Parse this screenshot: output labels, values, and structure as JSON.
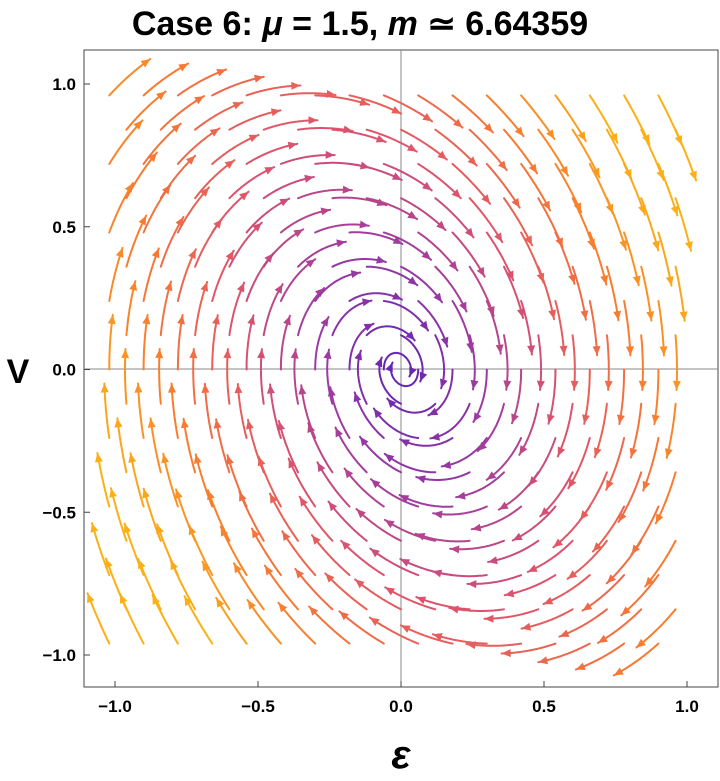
{
  "chart_data": {
    "type": "streamplot",
    "title": {
      "prefix": "Case 6: ",
      "mu_symbol": "μ",
      "mu_text": " = 1.5, ",
      "m_symbol": "m",
      "m_text": " ≃ 6.64359"
    },
    "xlabel": "ε",
    "ylabel": "V",
    "xlim": [
      -1.0,
      1.0
    ],
    "ylim": [
      -1.0,
      1.0
    ],
    "xticks": [
      -1.0,
      -0.5,
      0.0,
      0.5,
      1.0
    ],
    "yticks": [
      -1.0,
      -0.5,
      0.0,
      0.5,
      1.0
    ],
    "xtick_labels": [
      "−1.0",
      "−0.5",
      "0.0",
      "0.5",
      "1.0"
    ],
    "ytick_labels": [
      "−1.0",
      "−0.5",
      "0.0",
      "0.5",
      "1.0"
    ],
    "grid": false,
    "axes_through_origin": true,
    "colormap": {
      "name": "magnitude",
      "colors": [
        "#5b21b6",
        "#9a3aa3",
        "#e0556a",
        "#f97c2e",
        "#fbb015"
      ]
    },
    "vector_field": {
      "x_component": "V",
      "y_component": "-0.5*V - 1.5*ε"
    }
  }
}
